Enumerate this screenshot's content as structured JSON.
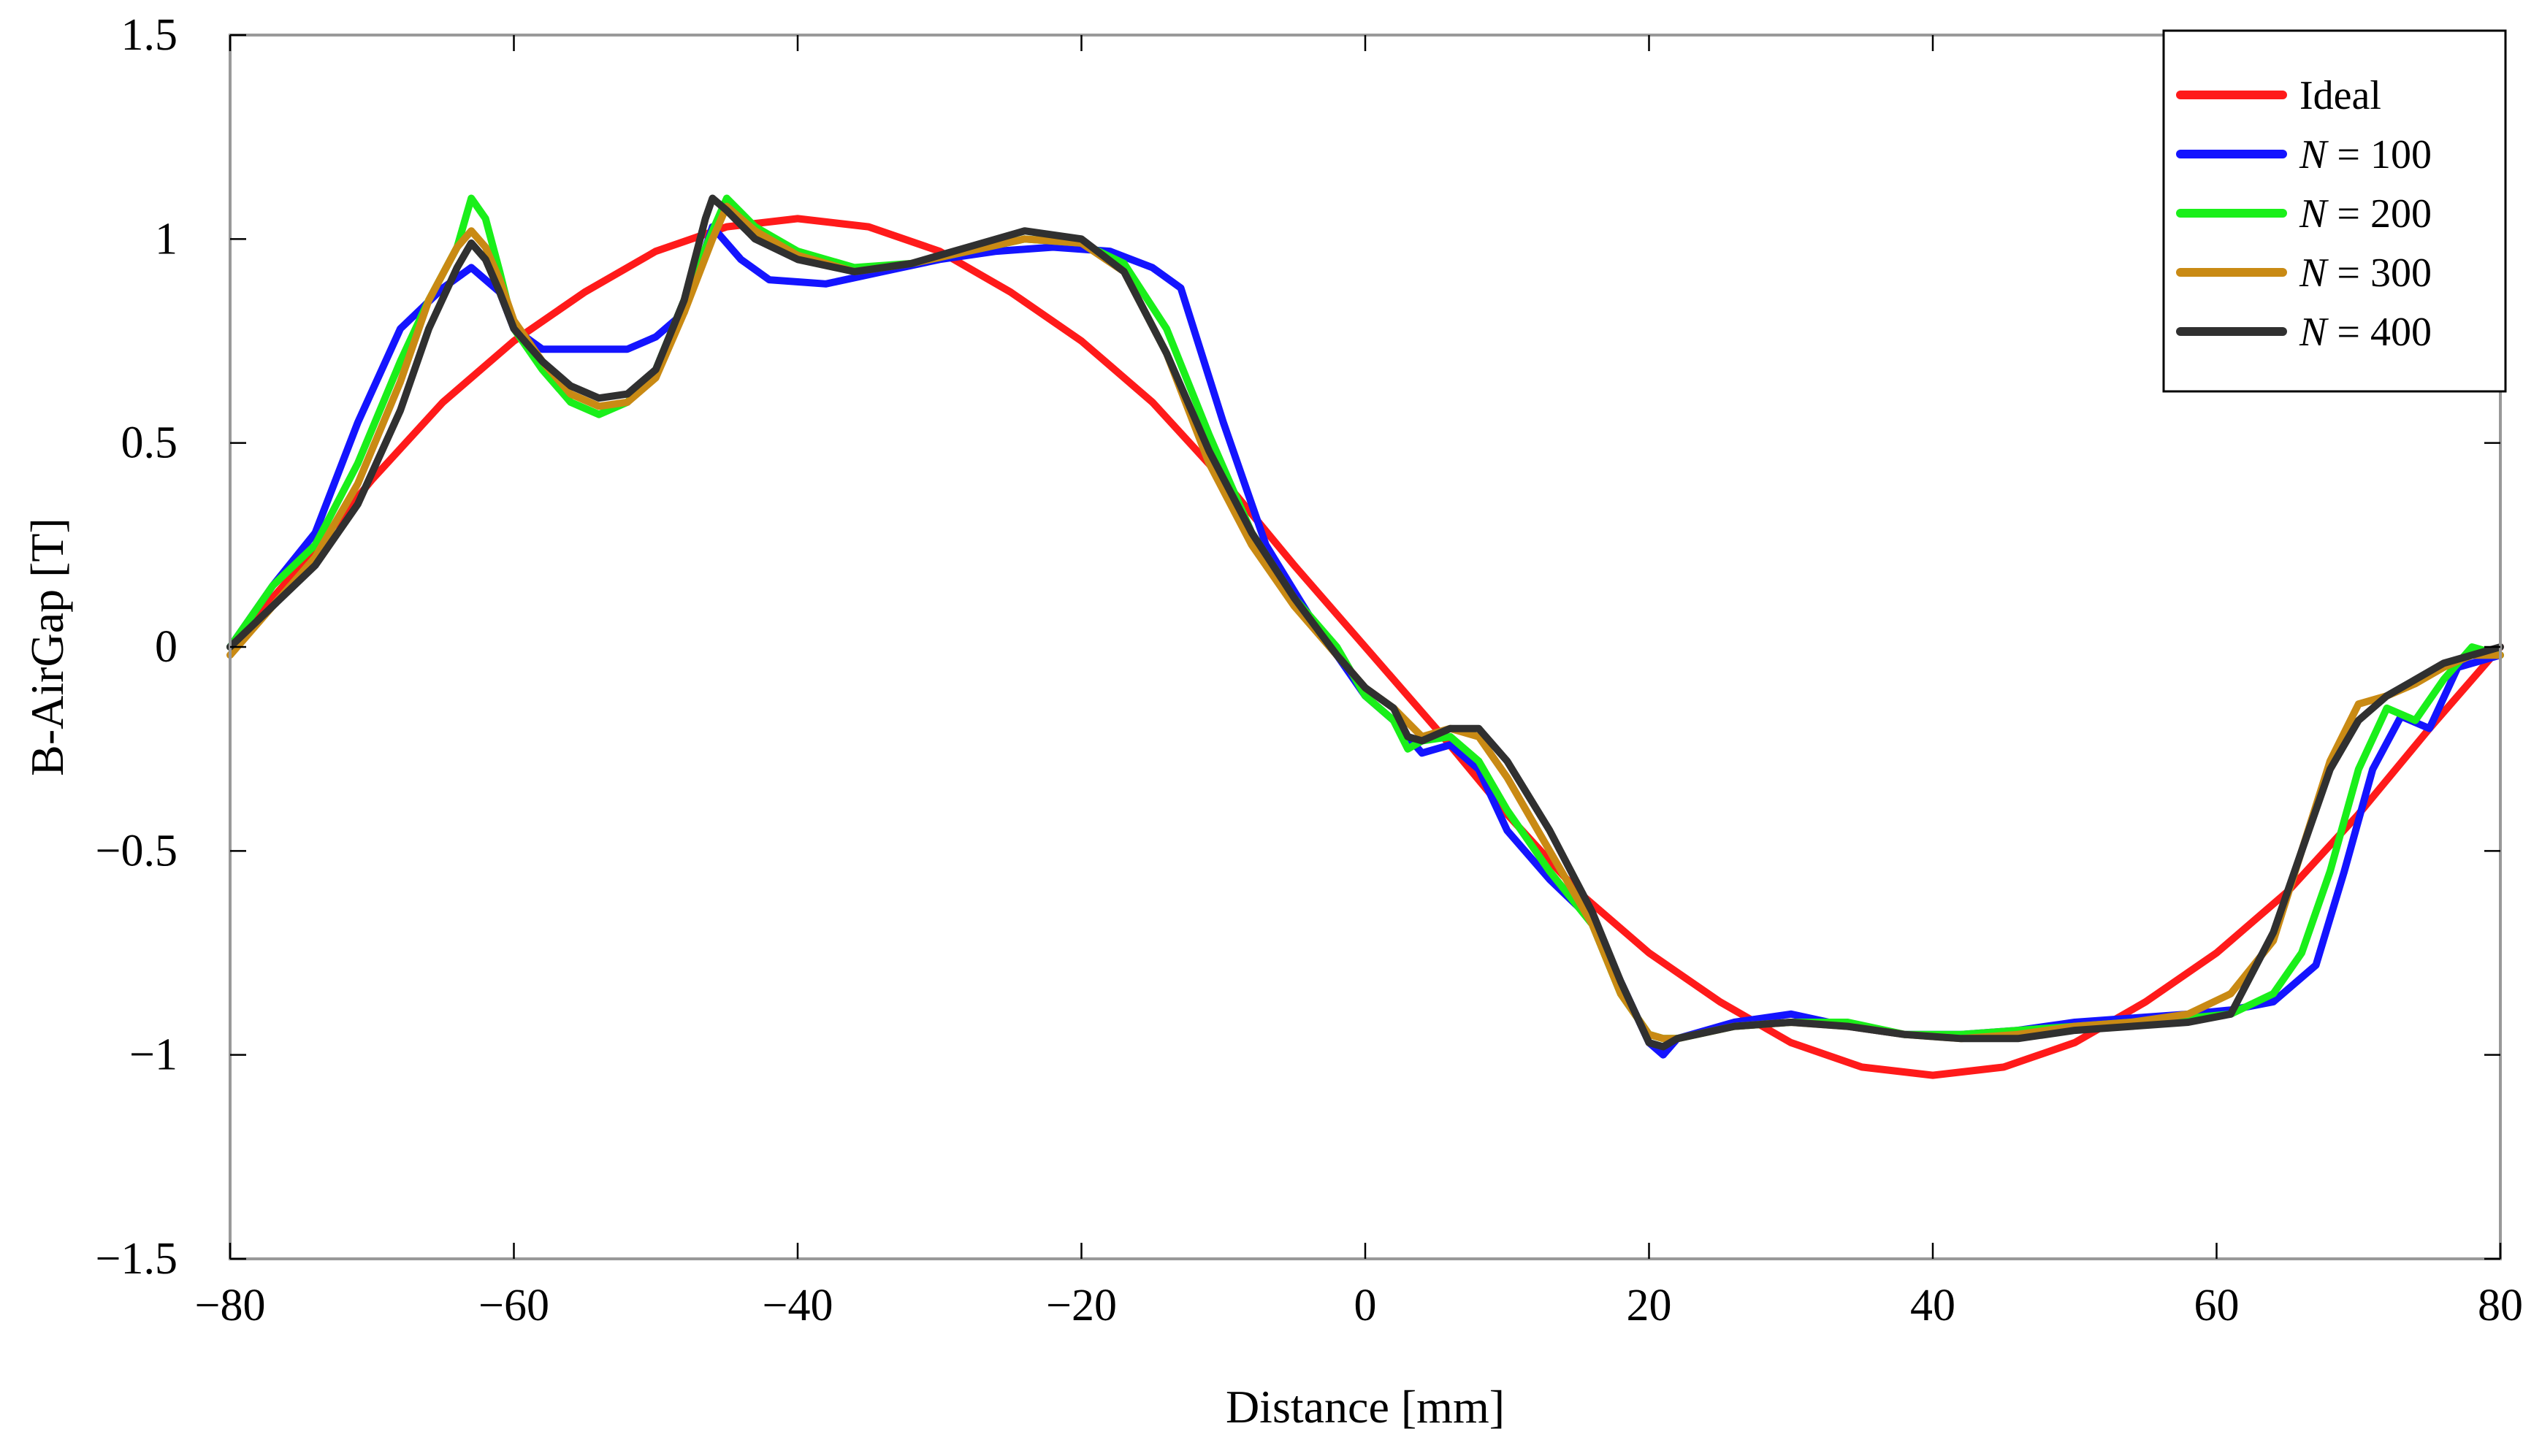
{
  "chart_data": {
    "type": "line",
    "title": "",
    "xlabel": "Distance [mm]",
    "ylabel": "B-AirGap [T]",
    "xlim": [
      -80,
      80
    ],
    "ylim": [
      -1.5,
      1.5
    ],
    "xticks": [
      -80,
      -60,
      -40,
      -20,
      0,
      20,
      40,
      60,
      80
    ],
    "xtick_labels": [
      "−80",
      "−60",
      "−40",
      "−20",
      "0",
      "20",
      "40",
      "60",
      "80"
    ],
    "yticks": [
      1.5,
      1,
      0.5,
      0,
      -0.5,
      -1,
      -1.5
    ],
    "ytick_labels": [
      "1.5",
      "1",
      "0.5",
      "0",
      "−0.5",
      "−1",
      "−1.5"
    ],
    "grid": false,
    "legend_position": "top-right",
    "series": [
      {
        "name": "Ideal",
        "legend_prefix": "",
        "legend_value": "Ideal",
        "color": "#ff1a1a",
        "x": [
          -80,
          -75,
          -70,
          -65,
          -60,
          -55,
          -50,
          -45,
          -40,
          -35,
          -30,
          -25,
          -20,
          -15,
          -10,
          -5,
          0,
          5,
          10,
          15,
          20,
          25,
          30,
          35,
          40,
          45,
          50,
          55,
          60,
          65,
          70,
          75,
          80
        ],
        "y": [
          0,
          0.2,
          0.41,
          0.6,
          0.75,
          0.87,
          0.97,
          1.03,
          1.05,
          1.03,
          0.97,
          0.87,
          0.75,
          0.6,
          0.41,
          0.2,
          0,
          -0.2,
          -0.41,
          -0.6,
          -0.75,
          -0.87,
          -0.97,
          -1.03,
          -1.05,
          -1.03,
          -0.97,
          -0.87,
          -0.75,
          -0.6,
          -0.41,
          -0.2,
          0
        ]
      },
      {
        "name": "N = 100",
        "legend_prefix": "N",
        "legend_value": " = 100",
        "color": "#1414ff",
        "x": [
          -80,
          -77,
          -74,
          -71,
          -68,
          -65,
          -63,
          -61,
          -60,
          -58,
          -55,
          -52,
          -50,
          -48,
          -46,
          -44,
          -42,
          -38,
          -34,
          -30,
          -26,
          -22,
          -18,
          -15,
          -13,
          -10,
          -7,
          -4,
          0,
          2,
          4,
          6,
          8,
          10,
          13,
          16,
          18,
          20,
          21,
          22,
          26,
          30,
          34,
          38,
          42,
          46,
          50,
          54,
          58,
          61,
          64,
          67,
          69,
          71,
          73,
          75,
          77,
          80
        ],
        "y": [
          0,
          0.15,
          0.28,
          0.55,
          0.78,
          0.88,
          0.93,
          0.87,
          0.78,
          0.73,
          0.73,
          0.73,
          0.76,
          0.82,
          1.03,
          0.95,
          0.9,
          0.89,
          0.92,
          0.95,
          0.97,
          0.98,
          0.97,
          0.93,
          0.88,
          0.55,
          0.25,
          0.08,
          -0.12,
          -0.18,
          -0.26,
          -0.24,
          -0.3,
          -0.45,
          -0.57,
          -0.67,
          -0.82,
          -0.97,
          -1.0,
          -0.96,
          -0.92,
          -0.9,
          -0.93,
          -0.95,
          -0.95,
          -0.94,
          -0.92,
          -0.91,
          -0.9,
          -0.89,
          -0.87,
          -0.78,
          -0.55,
          -0.3,
          -0.17,
          -0.2,
          -0.05,
          -0.02
        ]
      },
      {
        "name": "N = 200",
        "legend_prefix": "N",
        "legend_value": " = 200",
        "color": "#1aef1a",
        "x": [
          -80,
          -77,
          -74,
          -71,
          -68,
          -66,
          -64,
          -63,
          -62,
          -61,
          -60,
          -58,
          -56,
          -54,
          -52,
          -50,
          -48,
          -46,
          -45,
          -43,
          -40,
          -36,
          -32,
          -28,
          -24,
          -20,
          -17,
          -14,
          -11,
          -8,
          -5,
          -2,
          0,
          2,
          3,
          4,
          6,
          8,
          10,
          13,
          16,
          18,
          20,
          21,
          22,
          26,
          30,
          34,
          38,
          42,
          46,
          50,
          54,
          58,
          61,
          64,
          66,
          68,
          70,
          72,
          74,
          76,
          78,
          80
        ],
        "y": [
          0,
          0.15,
          0.25,
          0.45,
          0.7,
          0.85,
          0.98,
          1.1,
          1.05,
          0.92,
          0.78,
          0.68,
          0.6,
          0.57,
          0.6,
          0.68,
          0.85,
          1.02,
          1.1,
          1.03,
          0.97,
          0.93,
          0.94,
          0.97,
          1.0,
          0.99,
          0.94,
          0.78,
          0.52,
          0.28,
          0.12,
          0.0,
          -0.12,
          -0.18,
          -0.25,
          -0.23,
          -0.22,
          -0.28,
          -0.4,
          -0.55,
          -0.68,
          -0.85,
          -0.95,
          -0.96,
          -0.96,
          -0.93,
          -0.92,
          -0.92,
          -0.95,
          -0.95,
          -0.94,
          -0.93,
          -0.92,
          -0.91,
          -0.9,
          -0.85,
          -0.75,
          -0.55,
          -0.3,
          -0.15,
          -0.18,
          -0.08,
          0.0,
          -0.02
        ]
      },
      {
        "name": "N = 300",
        "legend_prefix": "N",
        "legend_value": " = 300",
        "color": "#c98a14",
        "x": [
          -80,
          -77,
          -74,
          -71,
          -68,
          -66,
          -64,
          -63,
          -62,
          -61,
          -60,
          -58,
          -56,
          -54,
          -52,
          -50,
          -48,
          -46,
          -45,
          -43,
          -40,
          -36,
          -32,
          -28,
          -24,
          -20,
          -17,
          -14,
          -11,
          -8,
          -5,
          -2,
          0,
          2,
          4,
          6,
          8,
          10,
          13,
          16,
          18,
          20,
          21,
          22,
          26,
          30,
          34,
          38,
          42,
          46,
          50,
          54,
          58,
          61,
          64,
          66,
          68,
          70,
          72,
          74,
          76,
          78,
          80
        ],
        "y": [
          -0.02,
          0.1,
          0.22,
          0.4,
          0.65,
          0.85,
          0.98,
          1.02,
          0.98,
          0.9,
          0.8,
          0.7,
          0.62,
          0.59,
          0.6,
          0.66,
          0.82,
          1.0,
          1.08,
          1.02,
          0.96,
          0.92,
          0.94,
          0.97,
          1.0,
          0.99,
          0.92,
          0.72,
          0.45,
          0.25,
          0.1,
          -0.02,
          -0.1,
          -0.15,
          -0.22,
          -0.2,
          -0.22,
          -0.32,
          -0.5,
          -0.68,
          -0.85,
          -0.95,
          -0.96,
          -0.96,
          -0.93,
          -0.92,
          -0.93,
          -0.95,
          -0.96,
          -0.95,
          -0.93,
          -0.92,
          -0.9,
          -0.85,
          -0.72,
          -0.5,
          -0.28,
          -0.14,
          -0.12,
          -0.09,
          -0.05,
          -0.02,
          -0.02
        ]
      },
      {
        "name": "N = 400",
        "legend_prefix": "N",
        "legend_value": " = 400",
        "color": "#303030",
        "x": [
          -80,
          -77,
          -74,
          -71,
          -68,
          -66,
          -64,
          -63,
          -62,
          -61,
          -60,
          -58,
          -56,
          -54,
          -52,
          -50,
          -48,
          -46.5,
          -46,
          -45,
          -43,
          -40,
          -36,
          -32,
          -28,
          -24,
          -20,
          -17,
          -14,
          -11,
          -8,
          -5,
          -2,
          0,
          2,
          3,
          4,
          6,
          8,
          10,
          13,
          16,
          18,
          20,
          21,
          22,
          26,
          30,
          34,
          38,
          42,
          46,
          50,
          54,
          58,
          61,
          64,
          66,
          68,
          70,
          72,
          74,
          76,
          78,
          80
        ],
        "y": [
          0,
          0.1,
          0.2,
          0.35,
          0.58,
          0.78,
          0.93,
          0.99,
          0.95,
          0.87,
          0.78,
          0.7,
          0.64,
          0.61,
          0.62,
          0.68,
          0.85,
          1.05,
          1.1,
          1.07,
          1.0,
          0.95,
          0.92,
          0.94,
          0.98,
          1.02,
          1.0,
          0.92,
          0.72,
          0.48,
          0.28,
          0.12,
          -0.02,
          -0.1,
          -0.15,
          -0.22,
          -0.23,
          -0.2,
          -0.2,
          -0.28,
          -0.45,
          -0.65,
          -0.82,
          -0.97,
          -0.98,
          -0.96,
          -0.93,
          -0.92,
          -0.93,
          -0.95,
          -0.96,
          -0.96,
          -0.94,
          -0.93,
          -0.92,
          -0.9,
          -0.7,
          -0.5,
          -0.3,
          -0.18,
          -0.12,
          -0.08,
          -0.04,
          -0.02,
          0.0
        ]
      }
    ]
  }
}
